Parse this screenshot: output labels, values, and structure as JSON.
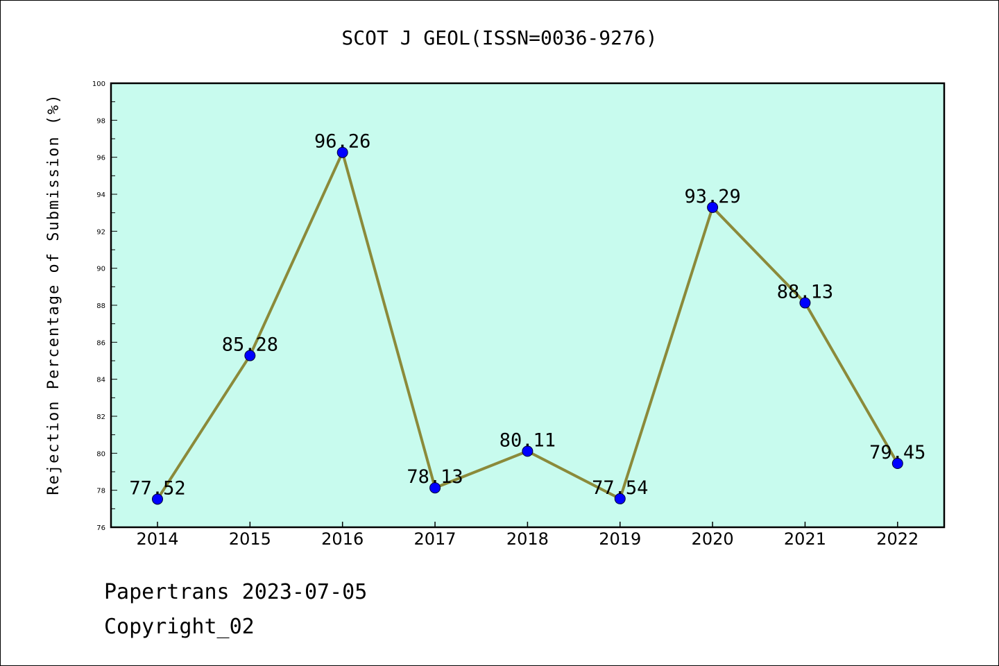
{
  "chart_data": {
    "type": "line",
    "title": "SCOT J GEOL(ISSN=0036-9276)",
    "xlabel": "",
    "ylabel": "Rejection Percentage of Submission (%)",
    "categories": [
      "2014",
      "2015",
      "2016",
      "2017",
      "2018",
      "2019",
      "2020",
      "2021",
      "2022"
    ],
    "series": [
      {
        "values": [
          77.52,
          85.28,
          96.26,
          78.13,
          80.11,
          77.54,
          93.29,
          88.13,
          79.45
        ],
        "data_labels": [
          "77.52",
          "85.28",
          "96.26",
          "78.13",
          "80.11",
          "77.54",
          "93.29",
          "88.13",
          "79.45"
        ]
      }
    ],
    "ylim": [
      76,
      100
    ],
    "yticks": [
      "76",
      "78",
      "80",
      "82",
      "84",
      "86",
      "88",
      "90",
      "92",
      "94",
      "96",
      "98",
      "100"
    ],
    "grid": false,
    "colors": {
      "plot_background": "#c8fbee",
      "line": "#8b8a3a",
      "marker": "#0000ff"
    }
  },
  "footer": {
    "date_text": "Papertrans 2023-07-05",
    "copyright_text": "Copyright_02"
  }
}
